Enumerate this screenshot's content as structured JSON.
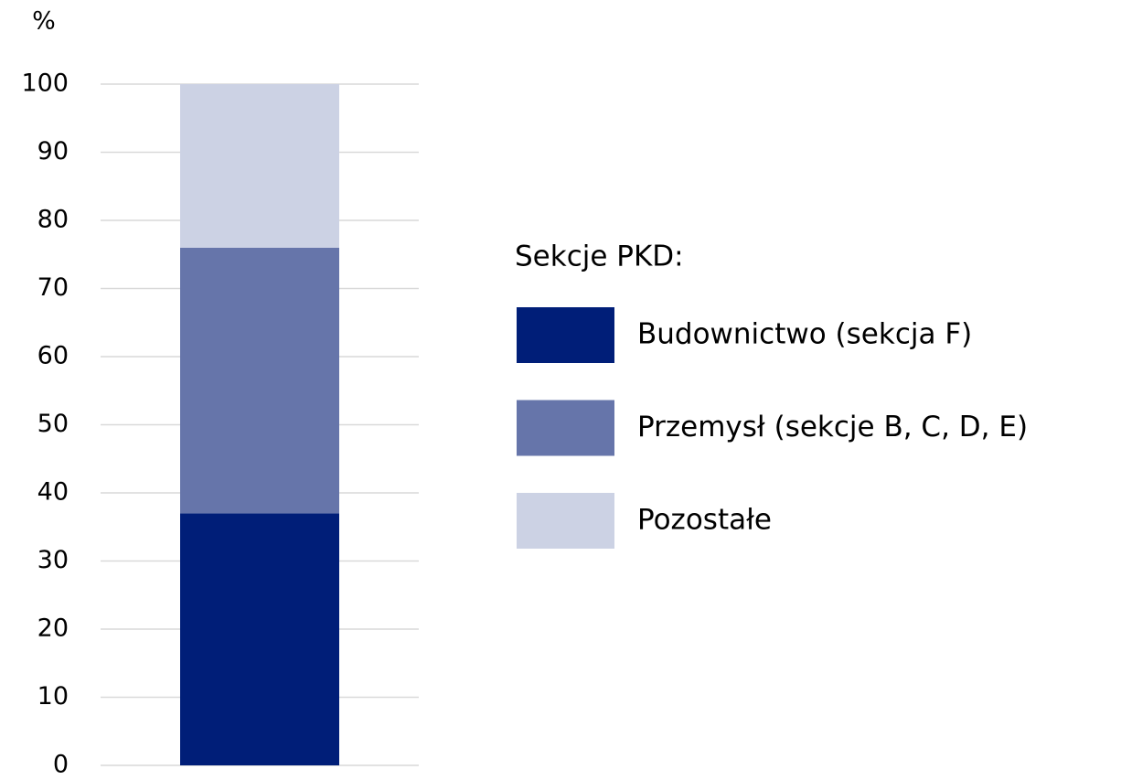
{
  "chart_data": {
    "type": "stacked_bar",
    "y_label": "%",
    "legend_title": "Sekcje PKD:",
    "categories": [
      null
    ],
    "series": [
      {
        "name": "Budownictwo (sekcja F)",
        "color": "#001e78",
        "values": [
          37
        ]
      },
      {
        "name": "Przemysł (sekcje B, C, D, E)",
        "color": "#6675aa",
        "values": [
          39
        ]
      },
      {
        "name": "Pozostałe",
        "color": "#ccd2e4",
        "values": [
          24
        ]
      }
    ],
    "ylim": [
      0,
      100
    ],
    "yticks": [
      0,
      10,
      20,
      30,
      40,
      50,
      60,
      70,
      80,
      90,
      100
    ],
    "grid": true,
    "legend": "right"
  }
}
